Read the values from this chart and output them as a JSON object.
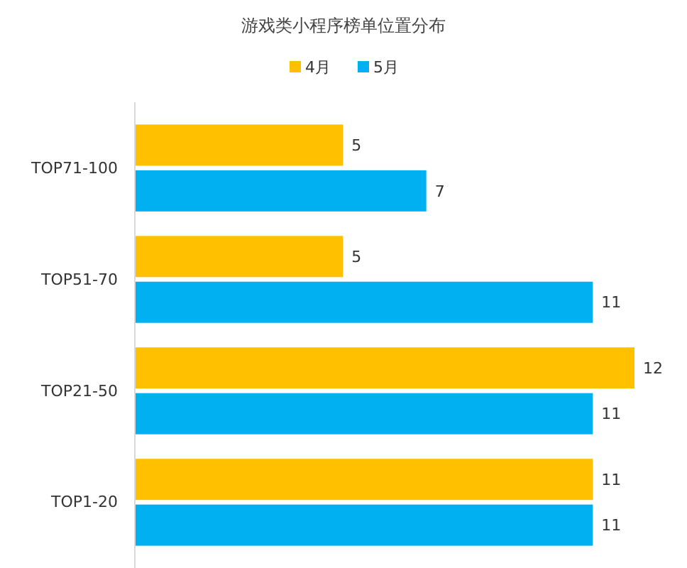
{
  "chart_data": {
    "type": "bar",
    "title": "游戏类小程序榜单位置分布",
    "orientation": "horizontal",
    "categories": [
      "TOP71-100",
      "TOP51-70",
      "TOP21-50",
      "TOP1-20"
    ],
    "series": [
      {
        "name": "4月",
        "color": "#ffc000",
        "values": [
          5,
          5,
          12,
          11
        ]
      },
      {
        "name": "5月",
        "color": "#00b0f0",
        "values": [
          7,
          11,
          11,
          11
        ]
      }
    ],
    "data_labels": true,
    "legend": "top",
    "grid": false
  }
}
